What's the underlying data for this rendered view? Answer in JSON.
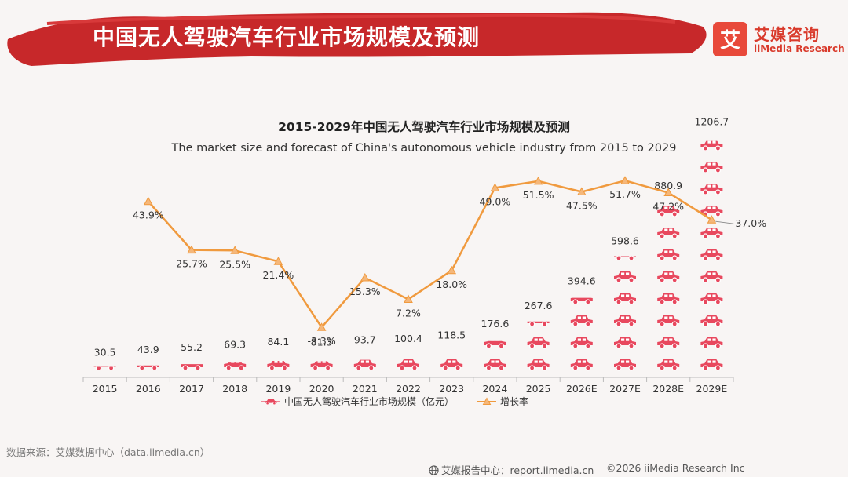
{
  "header": {
    "title": "中国无人驾驶汽车行业市场规模及预测",
    "brand_name_cn": "艾媒咨询",
    "brand_name_en": "iiMedia Research",
    "brand_logo_char": "艾"
  },
  "colors": {
    "banner_red": "#c7282a",
    "car_pink": "#e8485e",
    "line_orange": "#f09a3e",
    "brand_red": "#e8493a"
  },
  "chart_data": {
    "type": "bar+line",
    "title": "2015-2029年中国无人驾驶汽车行业市场规模及预测",
    "subtitle": "The market size and forecast of China's autonomous vehicle industry from 2015 to 2029",
    "categories": [
      "2015",
      "2016",
      "2017",
      "2018",
      "2019",
      "2020",
      "2021",
      "2022",
      "2023",
      "2024",
      "2025",
      "2026E",
      "2027E",
      "2028E",
      "2029E"
    ],
    "series": [
      {
        "name": "中国无人驾驶汽车行业市场规模（亿元）",
        "kind": "pictogram-bar",
        "values": [
          30.5,
          43.9,
          55.2,
          69.3,
          84.1,
          81.3,
          93.7,
          100.4,
          118.5,
          176.6,
          267.6,
          394.6,
          598.6,
          880.9,
          1206.7
        ],
        "labels": [
          "30.5",
          "43.9",
          "55.2",
          "69.3",
          "84.1",
          "81.3",
          "93.7",
          "100.4",
          "118.5",
          "176.6",
          "267.6",
          "394.6",
          "598.6",
          "880.9",
          "1206.7"
        ]
      },
      {
        "name": "增长率",
        "kind": "line",
        "unit": "%",
        "values": [
          null,
          43.9,
          25.7,
          25.5,
          21.4,
          -3.3,
          15.3,
          7.2,
          18.0,
          49.0,
          51.5,
          47.5,
          51.7,
          47.2,
          37.0
        ],
        "labels": [
          "",
          "43.9%",
          "25.7%",
          "25.5%",
          "21.4%",
          "-3.3%",
          "15.3%",
          "7.2%",
          "18.0%",
          "49.0%",
          "51.5%",
          "47.5%",
          "51.7%",
          "47.2%",
          "37.0%"
        ]
      }
    ],
    "legend": [
      "中国无人驾驶汽车行业市场规模（亿元）",
      "增长率"
    ],
    "legend_position": "bottom"
  },
  "footer": {
    "source": "数据来源：艾媒数据中心（data.iimedia.cn）",
    "report_center": "艾媒报告中心：report.iimedia.cn",
    "copyright": "©2026  iiMedia Research  Inc"
  }
}
